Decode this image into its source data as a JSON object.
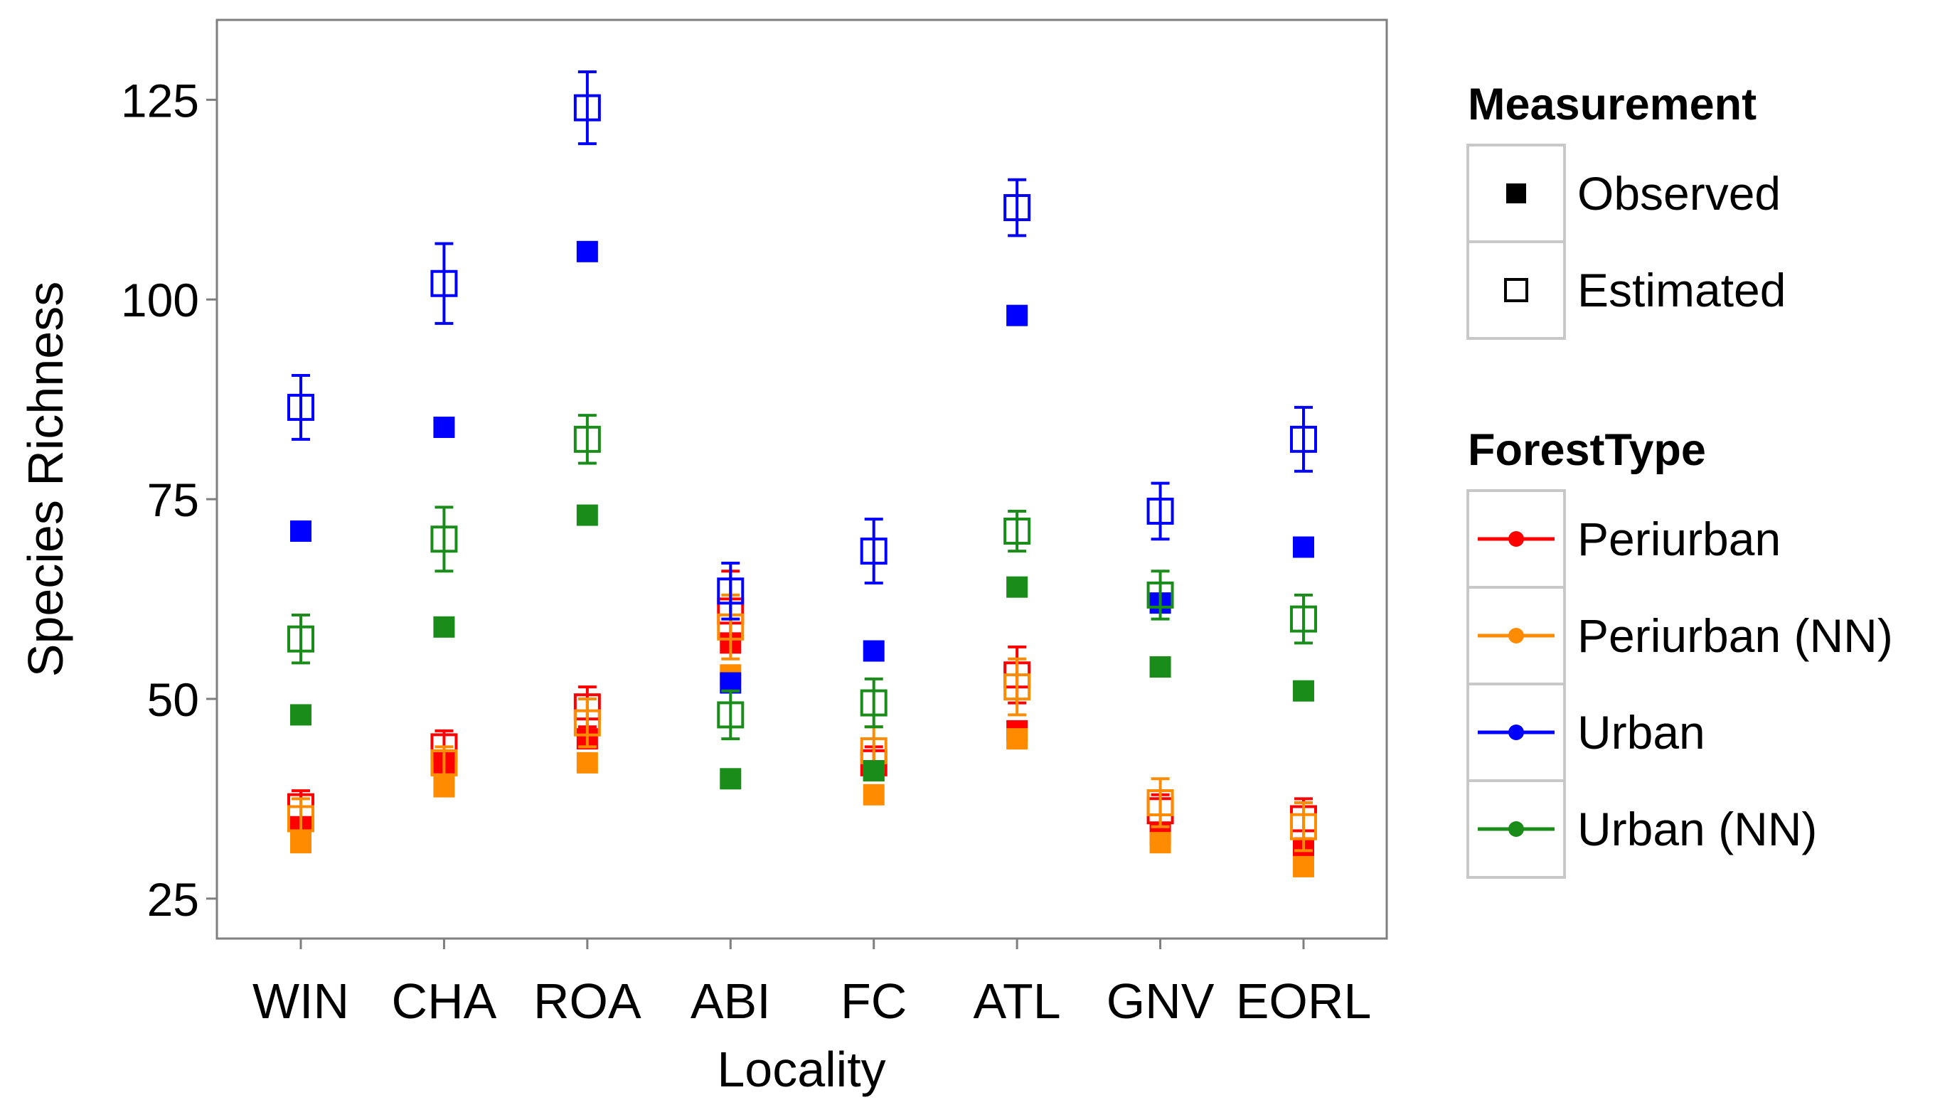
{
  "chart_data": {
    "type": "scatter",
    "title": "",
    "xlabel": "Locality",
    "ylabel": "Species Richness",
    "categories": [
      "WIN",
      "CHA",
      "ROA",
      "ABI",
      "FC",
      "ATL",
      "GNV",
      "EORL"
    ],
    "ylim": [
      20,
      135
    ],
    "yticks": [
      25,
      50,
      75,
      100,
      125
    ],
    "grid": false,
    "colors": {
      "Periurban": "#ff0000",
      "Periurban (NN)": "#ff8c00",
      "Urban": "#0000ff",
      "Urban (NN)": "#1a8c1a"
    },
    "series": [
      {
        "name": "Periurban",
        "observed": [
          34,
          42,
          45,
          57,
          41,
          46,
          33,
          31
        ],
        "estimated": [
          36.5,
          44,
          49,
          61,
          42,
          53,
          36,
          35
        ],
        "estimated_err": [
          2,
          2,
          2.5,
          5,
          2,
          3.5,
          2,
          2.5
        ]
      },
      {
        "name": "Periurban (NN)",
        "observed": [
          32,
          39,
          42,
          53,
          38,
          45,
          32,
          29
        ],
        "estimated": [
          35,
          42,
          47,
          59,
          43.5,
          51.5,
          37,
          34
        ],
        "estimated_err": [
          2.5,
          2,
          3,
          4,
          3,
          3.5,
          3,
          3
        ]
      },
      {
        "name": "Urban",
        "observed": [
          71,
          84,
          106,
          52,
          56,
          98,
          62,
          69
        ],
        "estimated": [
          86.5,
          102,
          124,
          63.5,
          68.5,
          111.5,
          73.5,
          82.5
        ],
        "estimated_err": [
          4,
          5,
          4.5,
          3.5,
          4,
          3.5,
          3.5,
          4
        ]
      },
      {
        "name": "Urban (NN)",
        "observed": [
          48,
          59,
          73,
          40,
          41,
          64,
          54,
          51
        ],
        "estimated": [
          57.5,
          70,
          82.5,
          48,
          49.5,
          71,
          63,
          60
        ],
        "estimated_err": [
          3,
          4,
          3,
          3,
          3,
          2.5,
          3,
          3
        ]
      }
    ],
    "legend": {
      "measurement_title": "Measurement",
      "measurement_items": [
        "Observed",
        "Estimated"
      ],
      "foresttype_title": "ForestType",
      "foresttype_items": [
        "Periurban",
        "Periurban (NN)",
        "Urban",
        "Urban (NN)"
      ],
      "position": "right"
    }
  }
}
